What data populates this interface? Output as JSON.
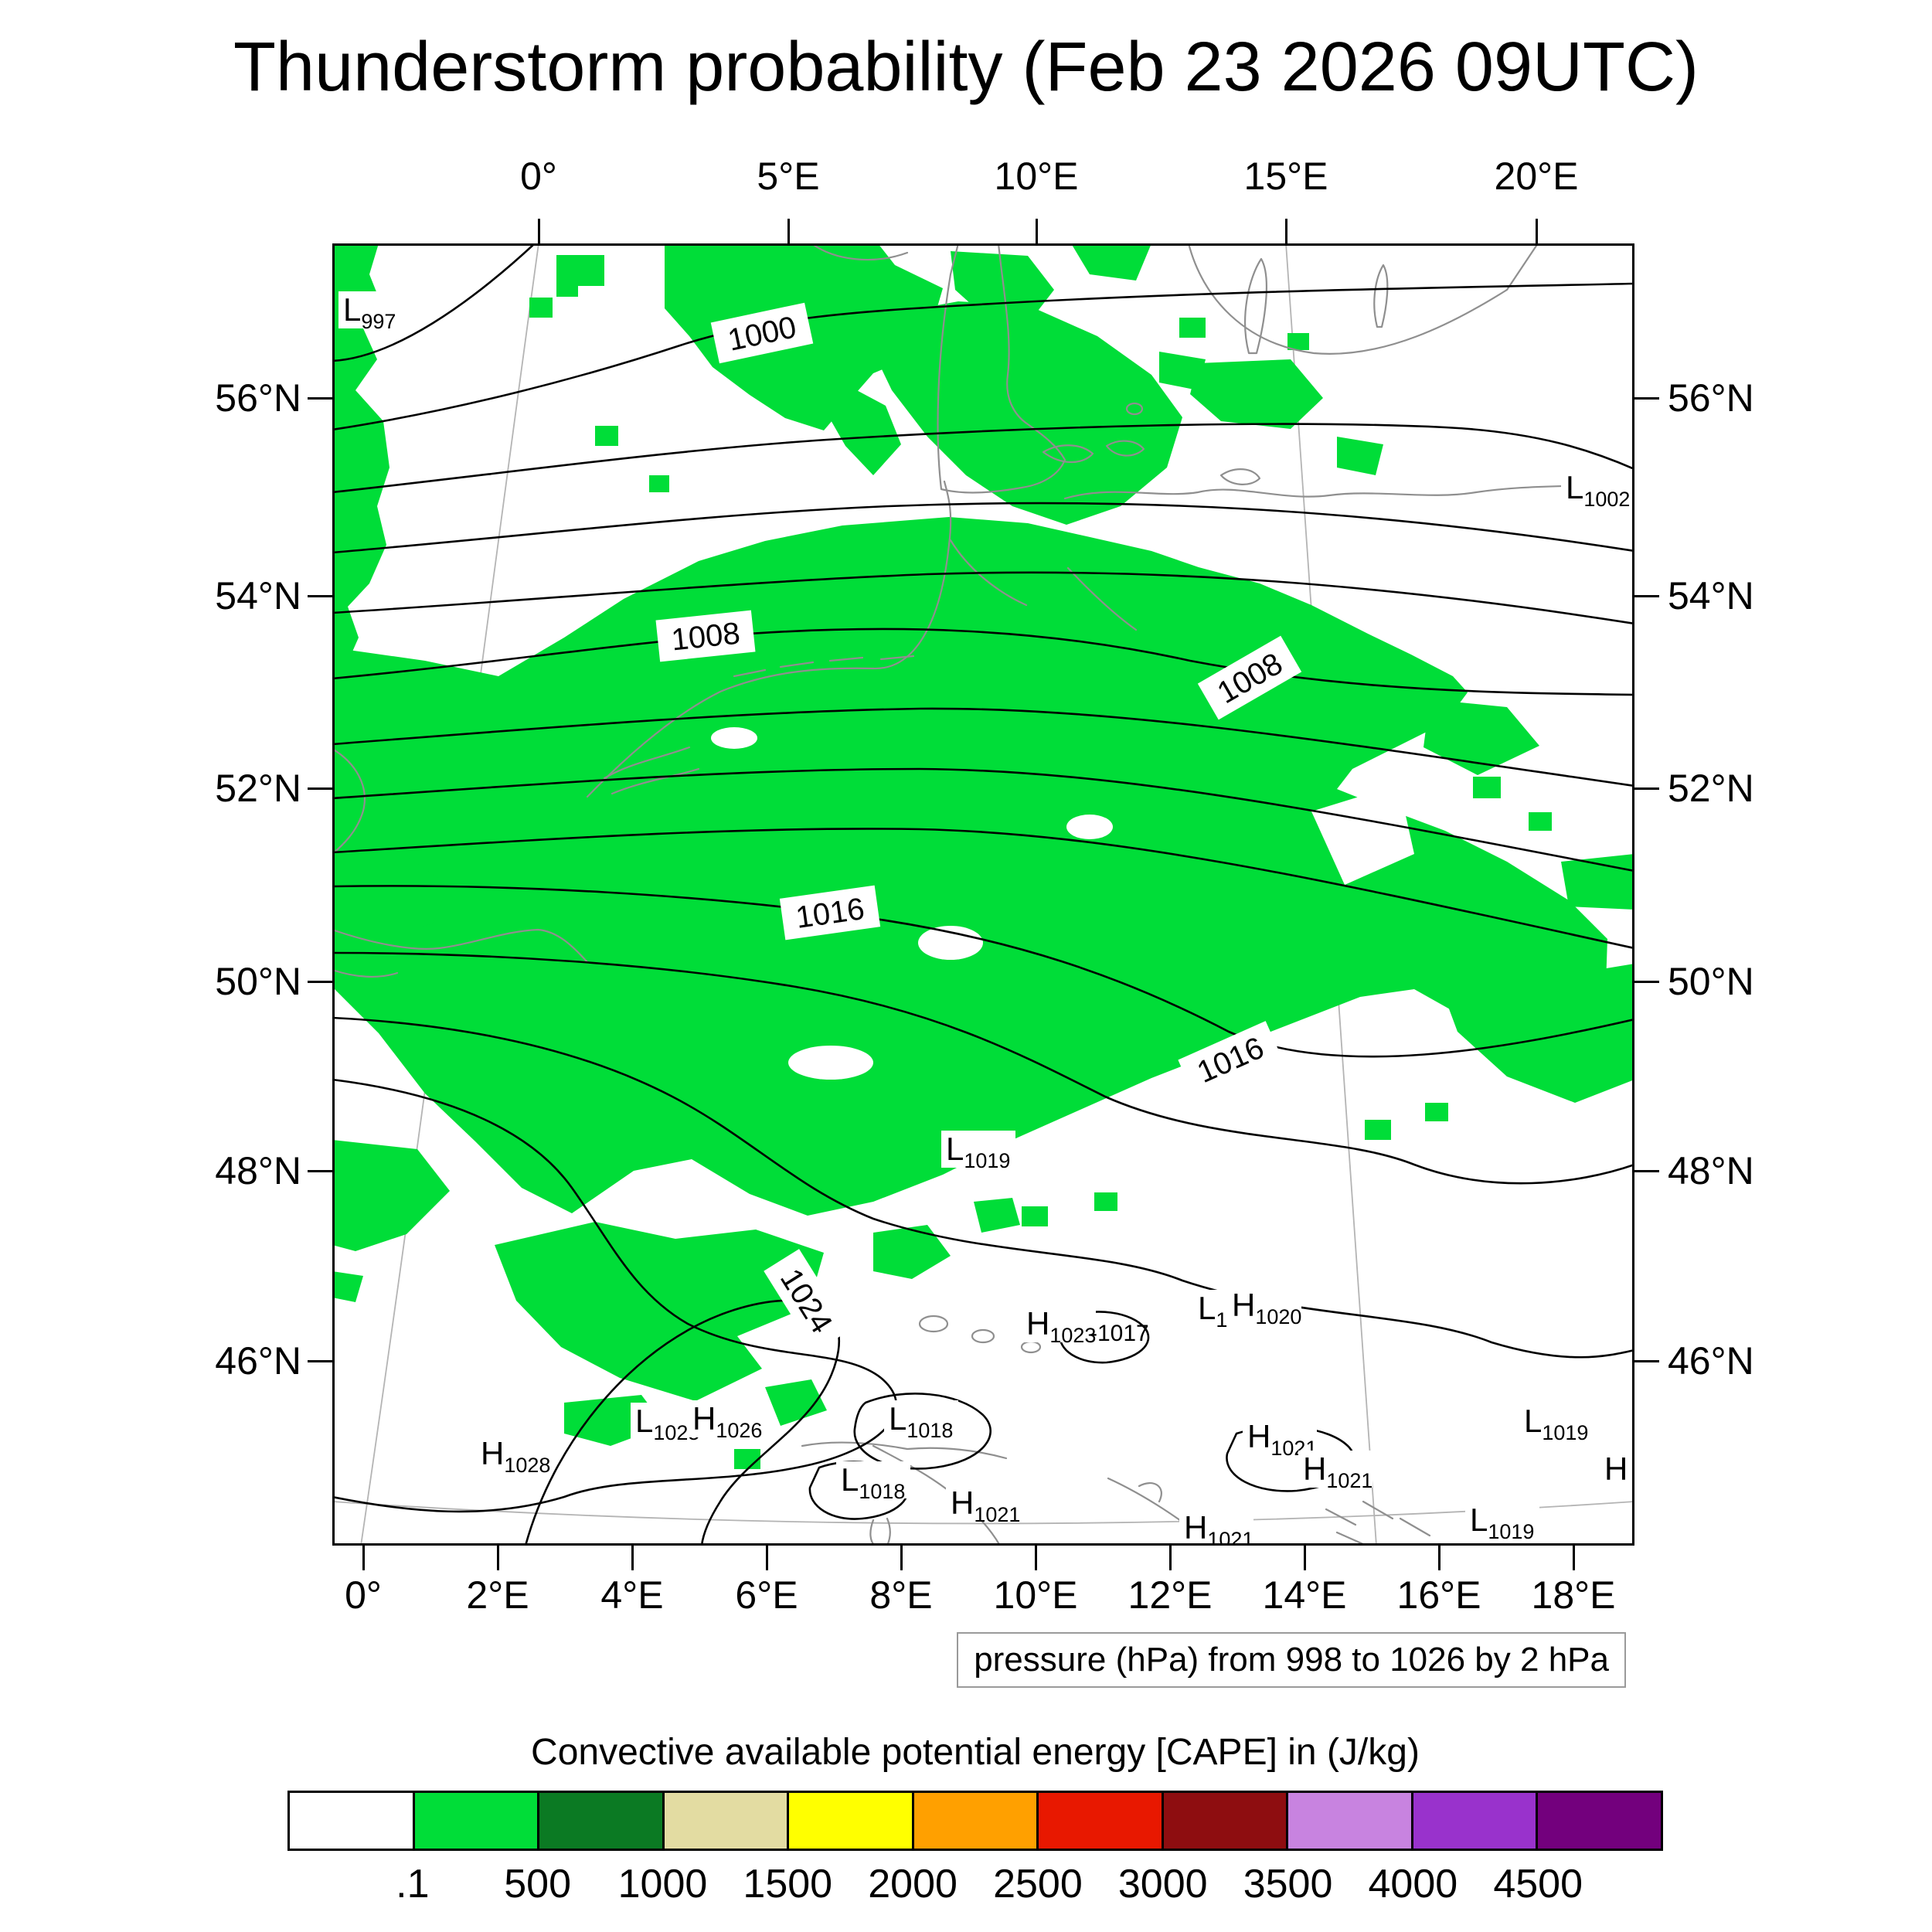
{
  "title": "Thunderstorm probability (Feb 23 2026 09UTC)",
  "axes": {
    "top": [
      "0°",
      "5°E",
      "10°E",
      "15°E",
      "20°E"
    ],
    "bottom": [
      "0°",
      "2°E",
      "4°E",
      "6°E",
      "8°E",
      "10°E",
      "12°E",
      "14°E",
      "16°E",
      "18°E"
    ],
    "left": [
      "56°N",
      "54°N",
      "52°N",
      "50°N",
      "48°N",
      "46°N"
    ],
    "right": [
      "56°N",
      "54°N",
      "52°N",
      "50°N",
      "48°N",
      "46°N"
    ]
  },
  "map": {
    "cape_color": "#00dd38",
    "coast_color": "#8f8f8f",
    "isobar_color": "#000000",
    "contour_labels": [
      {
        "text": "1000"
      },
      {
        "text": "1008"
      },
      {
        "text": "1008"
      },
      {
        "text": "1016"
      },
      {
        "text": "1016"
      },
      {
        "text": "1024"
      }
    ],
    "pressure_centers": [
      {
        "letter": "L",
        "value": "997"
      },
      {
        "letter": "L",
        "value": "1002"
      },
      {
        "letter": "L",
        "value": "1019"
      },
      {
        "letter": "L",
        "value": "1"
      },
      {
        "letter": "H",
        "value": "1020"
      },
      {
        "letter": "H",
        "value": "1023"
      },
      {
        "text": "-1017"
      },
      {
        "letter": "L",
        "value": "1025"
      },
      {
        "letter": "H",
        "value": "1026"
      },
      {
        "letter": "H",
        "value": "1028"
      },
      {
        "letter": "L",
        "value": "1018"
      },
      {
        "letter": "L",
        "value": "1018"
      },
      {
        "letter": "H",
        "value": "1021"
      },
      {
        "letter": "H",
        "value": "1021"
      },
      {
        "letter": "H",
        "value": "1021"
      },
      {
        "letter": "H",
        "value": "1021"
      },
      {
        "letter": "L",
        "value": "1019"
      },
      {
        "letter": "L",
        "value": "1019"
      },
      {
        "letter": "H",
        "value": ""
      }
    ]
  },
  "caption": "pressure (hPa) from 998 to 1026 by 2 hPa",
  "colorbar": {
    "title": "Convective available potential energy [CAPE] in (J/kg)",
    "labels": [
      ".1",
      "500",
      "1000",
      "1500",
      "2000",
      "2500",
      "3000",
      "3500",
      "4000",
      "4500"
    ],
    "colors": [
      "#ffffff",
      "#00dd38",
      "#0b7a23",
      "#e3dca2",
      "#ffff00",
      "#ffa000",
      "#e81800",
      "#8e0d10",
      "#c883e0",
      "#9932cc",
      "#73007d"
    ]
  },
  "chart_data": {
    "type": "heatmap",
    "title": "Thunderstorm probability (Feb 23 2026 09UTC)",
    "fill_variable": "Convective available potential energy [CAPE] in (J/kg)",
    "fill_levels": [
      0.1,
      500,
      1000,
      1500,
      2000,
      2500,
      3000,
      3500,
      4000,
      4500
    ],
    "contour_variable": "pressure (hPa) from 998 to 1026 by 2 hPa",
    "contour_labels_shown": [
      "1000",
      "1008",
      "1008",
      "1016",
      "1016",
      "1024"
    ],
    "x_axis_range": [
      "0°E",
      "20°E"
    ],
    "y_axis_range": [
      "46°N",
      "56°N"
    ],
    "legend_position": "bottom"
  }
}
